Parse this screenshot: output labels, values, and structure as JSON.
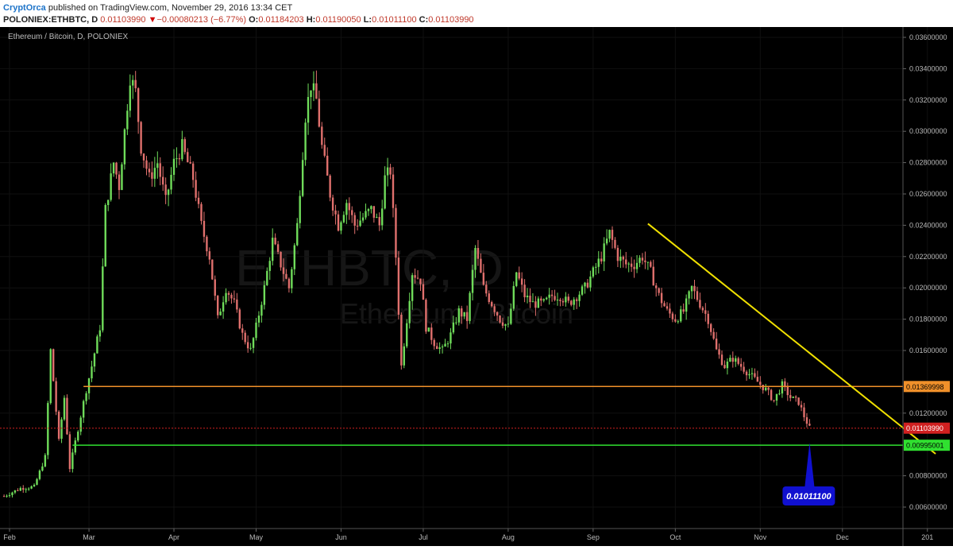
{
  "header": {
    "author": "CryptOrca",
    "published": "published on TradingView.com, November 29, 2016 13:34 CET",
    "symbol": "POLONIEX:ETHBTC, D",
    "last": "0.01103990",
    "arrow_icon": "triangle-down-icon",
    "change": "−0.00080213 (−6.77%)",
    "o_label": "O:",
    "o": "0.01184203",
    "h_label": "H:",
    "h": "0.01190050",
    "l_label": "L:",
    "l": "0.01011100",
    "c_label": "C:",
    "c": "0.01103990"
  },
  "colors": {
    "background": "#000000",
    "up": "#6fdc5a",
    "down": "#e0706d",
    "trendline": "#f0e000",
    "resistance": "#f0902a",
    "support": "#30e030",
    "last_price": "#d02020",
    "callout": "#1010d0"
  },
  "chart_data": {
    "type": "candlestick",
    "title": "Ethereum / Bitcoin, D, POLONIEX",
    "watermark": {
      "symbol": "ETHBTC, D",
      "name": "Ethereum / Bitcoin"
    },
    "ylim": [
      0.005,
      0.037
    ],
    "y_ticks": [
      "0.03600000",
      "0.03400000",
      "0.03200000",
      "0.03000000",
      "0.02800000",
      "0.02600000",
      "0.02400000",
      "0.02200000",
      "0.02000000",
      "0.01800000",
      "0.01600000",
      "0.01200000",
      "0.00800000",
      "0.00600000"
    ],
    "x_ticks": [
      {
        "label": "Feb",
        "day": 0
      },
      {
        "label": "Mar",
        "day": 29
      },
      {
        "label": "Apr",
        "day": 60
      },
      {
        "label": "May",
        "day": 90
      },
      {
        "label": "Jun",
        "day": 121
      },
      {
        "label": "Jul",
        "day": 151
      },
      {
        "label": "Aug",
        "day": 182
      },
      {
        "label": "Sep",
        "day": 213
      },
      {
        "label": "Oct",
        "day": 243
      },
      {
        "label": "Nov",
        "day": 274
      },
      {
        "label": "Dec",
        "day": 304
      },
      {
        "label": "201",
        "day": 335
      }
    ],
    "xlim": [
      -3,
      338
    ],
    "close_path": [
      [
        -2,
        0.0067
      ],
      [
        4,
        0.0072
      ],
      [
        9,
        0.0073
      ],
      [
        13,
        0.0092
      ],
      [
        15,
        0.016
      ],
      [
        18,
        0.0102
      ],
      [
        20,
        0.013
      ],
      [
        22,
        0.0085
      ],
      [
        25,
        0.011
      ],
      [
        28,
        0.0135
      ],
      [
        30,
        0.015
      ],
      [
        33,
        0.0175
      ],
      [
        35,
        0.025
      ],
      [
        38,
        0.028
      ],
      [
        40,
        0.0265
      ],
      [
        42,
        0.03
      ],
      [
        44,
        0.0335
      ],
      [
        46,
        0.0325
      ],
      [
        48,
        0.029
      ],
      [
        51,
        0.027
      ],
      [
        54,
        0.028
      ],
      [
        57,
        0.0255
      ],
      [
        60,
        0.028
      ],
      [
        63,
        0.029
      ],
      [
        67,
        0.027
      ],
      [
        70,
        0.024
      ],
      [
        73,
        0.022
      ],
      [
        76,
        0.018
      ],
      [
        79,
        0.02
      ],
      [
        82,
        0.019
      ],
      [
        85,
        0.017
      ],
      [
        88,
        0.016
      ],
      [
        90,
        0.0175
      ],
      [
        93,
        0.02
      ],
      [
        96,
        0.023
      ],
      [
        99,
        0.0215
      ],
      [
        102,
        0.02
      ],
      [
        105,
        0.024
      ],
      [
        108,
        0.031
      ],
      [
        110,
        0.033
      ],
      [
        112,
        0.032
      ],
      [
        114,
        0.029
      ],
      [
        117,
        0.026
      ],
      [
        120,
        0.024
      ],
      [
        123,
        0.0255
      ],
      [
        126,
        0.024
      ],
      [
        129,
        0.0245
      ],
      [
        132,
        0.025
      ],
      [
        135,
        0.024
      ],
      [
        137,
        0.027
      ],
      [
        139,
        0.0275
      ],
      [
        141,
        0.022
      ],
      [
        143,
        0.015
      ],
      [
        145,
        0.018
      ],
      [
        147,
        0.021
      ],
      [
        150,
        0.0205
      ],
      [
        152,
        0.0175
      ],
      [
        155,
        0.0165
      ],
      [
        158,
        0.016
      ],
      [
        161,
        0.017
      ],
      [
        164,
        0.0185
      ],
      [
        167,
        0.018
      ],
      [
        170,
        0.0225
      ],
      [
        173,
        0.02
      ],
      [
        176,
        0.019
      ],
      [
        179,
        0.018
      ],
      [
        182,
        0.0175
      ],
      [
        185,
        0.021
      ],
      [
        188,
        0.0195
      ],
      [
        191,
        0.019
      ],
      [
        195,
        0.019
      ],
      [
        198,
        0.0195
      ],
      [
        201,
        0.0195
      ],
      [
        204,
        0.019
      ],
      [
        207,
        0.0195
      ],
      [
        210,
        0.02
      ],
      [
        213,
        0.021
      ],
      [
        216,
        0.022
      ],
      [
        219,
        0.0235
      ],
      [
        222,
        0.022
      ],
      [
        225,
        0.0215
      ],
      [
        228,
        0.0215
      ],
      [
        231,
        0.022
      ],
      [
        234,
        0.021
      ],
      [
        237,
        0.0195
      ],
      [
        240,
        0.0185
      ],
      [
        243,
        0.018
      ],
      [
        246,
        0.0185
      ],
      [
        249,
        0.02
      ],
      [
        252,
        0.019
      ],
      [
        255,
        0.018
      ],
      [
        258,
        0.016
      ],
      [
        261,
        0.015
      ],
      [
        264,
        0.0155
      ],
      [
        267,
        0.015
      ],
      [
        270,
        0.0145
      ],
      [
        273,
        0.014
      ],
      [
        276,
        0.0135
      ],
      [
        279,
        0.0128
      ],
      [
        282,
        0.0138
      ],
      [
        285,
        0.013
      ],
      [
        288,
        0.0127
      ],
      [
        290,
        0.0118
      ],
      [
        292,
        0.01104
      ]
    ],
    "annotations": {
      "resistance": {
        "value": 0.01369998,
        "label": "0.01369998"
      },
      "support": {
        "value": 0.00995001,
        "label": "0.00995001"
      },
      "last_price": {
        "value": 0.0110399,
        "label": "0.01103990"
      },
      "low_callout": {
        "value": 0.010111,
        "label": "0.01011100",
        "day": 292
      },
      "trendline": {
        "start": [
          233,
          0.0241
        ],
        "end": [
          338,
          0.0094
        ]
      }
    }
  }
}
